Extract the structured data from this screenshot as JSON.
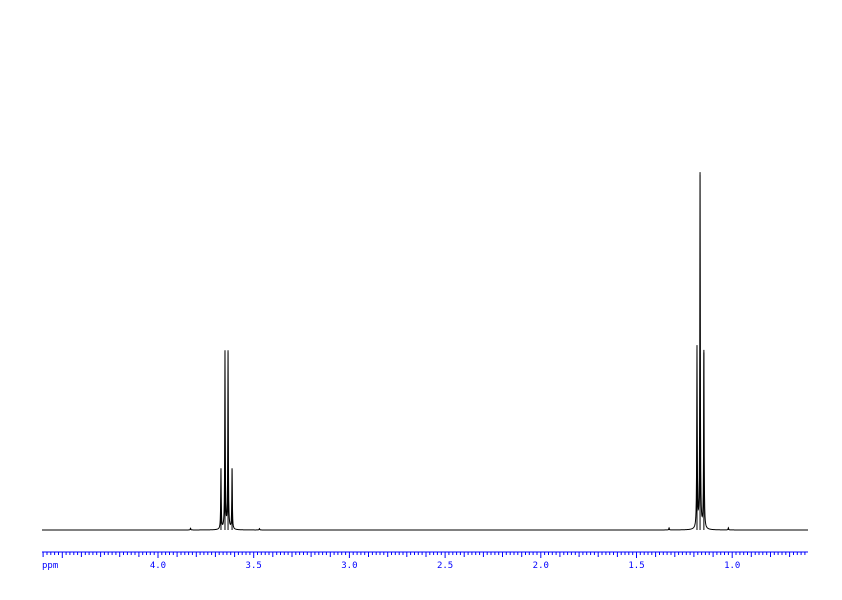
{
  "chart_data": {
    "type": "line",
    "xlabel": "ppm",
    "xlim": [
      4.606,
      0.604
    ],
    "x_reversed": true,
    "ylim": [
      0,
      100
    ],
    "grid": false,
    "axis_color": "#0000ff",
    "line_color": "#000000",
    "x_ticks": [
      "4.0",
      "3.5",
      "3.0",
      "2.5",
      "2.0",
      "1.5",
      "1.0"
    ],
    "minor_tick_step": 0.02,
    "medium_tick_step": 0.1,
    "peaks": [
      {
        "ppm": 3.671,
        "intensity": 17
      },
      {
        "ppm": 3.65,
        "intensity": 50
      },
      {
        "ppm": 3.634,
        "intensity": 50
      },
      {
        "ppm": 3.613,
        "intensity": 17
      },
      {
        "ppm": 1.184,
        "intensity": 51
      },
      {
        "ppm": 1.168,
        "intensity": 100
      },
      {
        "ppm": 1.148,
        "intensity": 50
      },
      {
        "ppm": 3.83,
        "intensity": 0.5
      },
      {
        "ppm": 3.47,
        "intensity": 0.4
      },
      {
        "ppm": 1.33,
        "intensity": 0.6
      },
      {
        "ppm": 1.02,
        "intensity": 0.6
      }
    ]
  }
}
